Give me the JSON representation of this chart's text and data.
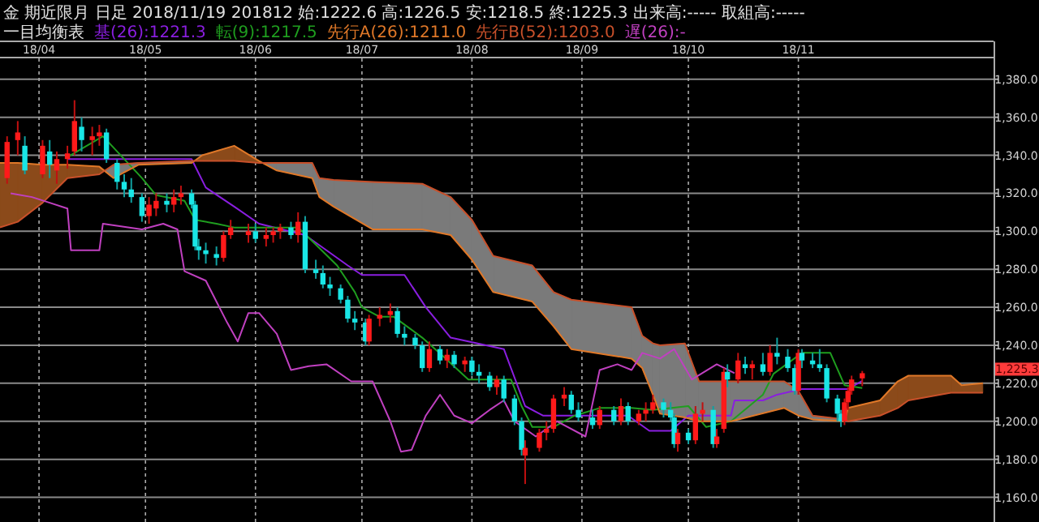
{
  "chart_data": {
    "type": "candlestick",
    "title": "金 期近限月 日足 2018/11/19 201812 始:1222.6 高:1226.5 安:1218.5 終:1225.3 出来高:----- 取組高:-----",
    "legend_title": "一目均衡表",
    "x": [
      "2018-03-23",
      "2018-03-26",
      "2018-03-28",
      "2018-04-02",
      "2018-04-04",
      "2018-04-06",
      "2018-04-09",
      "2018-04-11",
      "2018-04-13",
      "2018-04-16",
      "2018-04-18",
      "2018-04-20",
      "2018-04-23",
      "2018-04-25",
      "2018-04-27",
      "2018-04-30",
      "2018-05-02",
      "2018-05-04",
      "2018-05-07",
      "2018-05-09",
      "2018-05-11",
      "2018-05-14",
      "2018-05-15",
      "2018-05-16",
      "2018-05-18",
      "2018-05-21",
      "2018-05-23",
      "2018-05-25",
      "2018-05-30",
      "2018-06-01",
      "2018-06-04",
      "2018-06-06",
      "2018-06-08",
      "2018-06-11",
      "2018-06-13",
      "2018-06-15",
      "2018-06-18",
      "2018-06-20",
      "2018-06-22",
      "2018-06-25",
      "2018-06-27",
      "2018-06-29",
      "2018-07-02",
      "2018-07-03",
      "2018-07-06",
      "2018-07-09",
      "2018-07-11",
      "2018-07-13",
      "2018-07-16",
      "2018-07-18",
      "2018-07-20",
      "2018-07-23",
      "2018-07-25",
      "2018-07-27",
      "2018-07-30",
      "2018-08-01",
      "2018-08-03",
      "2018-08-06",
      "2018-08-08",
      "2018-08-10",
      "2018-08-13",
      "2018-08-15",
      "2018-08-16",
      "2018-08-20",
      "2018-08-22",
      "2018-08-24",
      "2018-08-27",
      "2018-08-29",
      "2018-08-31",
      "2018-09-04",
      "2018-09-06",
      "2018-09-10",
      "2018-09-12",
      "2018-09-14",
      "2018-09-17",
      "2018-09-19",
      "2018-09-21",
      "2018-09-24",
      "2018-09-26",
      "2018-09-27",
      "2018-09-28",
      "2018-10-01",
      "2018-10-03",
      "2018-10-05",
      "2018-10-08",
      "2018-10-09",
      "2018-10-11",
      "2018-10-12",
      "2018-10-15",
      "2018-10-17",
      "2018-10-19",
      "2018-10-22",
      "2018-10-24",
      "2018-10-26",
      "2018-10-29",
      "2018-10-31",
      "2018-11-01",
      "2018-11-02",
      "2018-11-05",
      "2018-11-07",
      "2018-11-09",
      "2018-11-12",
      "2018-11-13",
      "2018-11-14",
      "2018-11-15",
      "2018-11-16",
      "2018-11-19"
    ],
    "ohlc": [
      [
        1328,
        1350,
        1325,
        1347
      ],
      [
        1348,
        1358,
        1340,
        1352
      ],
      [
        1345,
        1350,
        1330,
        1332
      ],
      [
        1330,
        1348,
        1328,
        1345
      ],
      [
        1342,
        1348,
        1328,
        1335
      ],
      [
        1332,
        1342,
        1325,
        1338
      ],
      [
        1338,
        1345,
        1333,
        1341
      ],
      [
        1342,
        1369,
        1340,
        1358
      ],
      [
        1355,
        1360,
        1342,
        1348
      ],
      [
        1348,
        1355,
        1340,
        1350
      ],
      [
        1350,
        1356,
        1345,
        1352
      ],
      [
        1352,
        1354,
        1336,
        1338
      ],
      [
        1336,
        1338,
        1322,
        1326
      ],
      [
        1326,
        1330,
        1318,
        1322
      ],
      [
        1322,
        1328,
        1315,
        1318
      ],
      [
        1318,
        1320,
        1305,
        1308
      ],
      [
        1308,
        1318,
        1304,
        1314
      ],
      [
        1312,
        1320,
        1308,
        1316
      ],
      [
        1316,
        1320,
        1310,
        1314
      ],
      [
        1314,
        1322,
        1310,
        1318
      ],
      [
        1318,
        1324,
        1314,
        1320
      ],
      [
        1320,
        1322,
        1312,
        1314
      ],
      [
        1314,
        1316,
        1290,
        1292
      ],
      [
        1292,
        1296,
        1285,
        1290
      ],
      [
        1290,
        1294,
        1283,
        1288
      ],
      [
        1288,
        1292,
        1282,
        1286
      ],
      [
        1286,
        1300,
        1284,
        1298
      ],
      [
        1298,
        1306,
        1296,
        1302
      ],
      [
        1298,
        1304,
        1294,
        1300
      ],
      [
        1300,
        1304,
        1294,
        1296
      ],
      [
        1296,
        1302,
        1292,
        1298
      ],
      [
        1298,
        1302,
        1294,
        1300
      ],
      [
        1300,
        1304,
        1296,
        1302
      ],
      [
        1302,
        1305,
        1296,
        1298
      ],
      [
        1298,
        1310,
        1294,
        1305
      ],
      [
        1305,
        1308,
        1278,
        1280
      ],
      [
        1280,
        1285,
        1275,
        1278
      ],
      [
        1278,
        1282,
        1270,
        1272
      ],
      [
        1272,
        1276,
        1266,
        1270
      ],
      [
        1270,
        1272,
        1262,
        1264
      ],
      [
        1264,
        1266,
        1252,
        1254
      ],
      [
        1254,
        1258,
        1248,
        1252
      ],
      [
        1252,
        1254,
        1240,
        1242
      ],
      [
        1242,
        1256,
        1240,
        1254
      ],
      [
        1254,
        1260,
        1250,
        1256
      ],
      [
        1256,
        1262,
        1252,
        1258
      ],
      [
        1258,
        1260,
        1244,
        1246
      ],
      [
        1246,
        1250,
        1240,
        1244
      ],
      [
        1244,
        1246,
        1238,
        1240
      ],
      [
        1240,
        1242,
        1226,
        1228
      ],
      [
        1228,
        1242,
        1226,
        1238
      ],
      [
        1238,
        1240,
        1230,
        1232
      ],
      [
        1232,
        1238,
        1228,
        1235
      ],
      [
        1235,
        1237,
        1228,
        1230
      ],
      [
        1230,
        1234,
        1226,
        1232
      ],
      [
        1232,
        1234,
        1224,
        1226
      ],
      [
        1226,
        1230,
        1220,
        1224
      ],
      [
        1224,
        1226,
        1216,
        1218
      ],
      [
        1218,
        1224,
        1214,
        1222
      ],
      [
        1222,
        1224,
        1210,
        1212
      ],
      [
        1212,
        1214,
        1198,
        1200
      ],
      [
        1200,
        1202,
        1182,
        1185
      ],
      [
        1182,
        1190,
        1167,
        1186
      ],
      [
        1186,
        1196,
        1184,
        1194
      ],
      [
        1194,
        1200,
        1190,
        1196
      ],
      [
        1196,
        1214,
        1194,
        1212
      ],
      [
        1212,
        1218,
        1208,
        1214
      ],
      [
        1214,
        1216,
        1204,
        1206
      ],
      [
        1206,
        1210,
        1200,
        1202
      ],
      [
        1202,
        1206,
        1196,
        1198
      ],
      [
        1198,
        1208,
        1196,
        1206
      ],
      [
        1206,
        1208,
        1198,
        1200
      ],
      [
        1200,
        1212,
        1198,
        1208
      ],
      [
        1208,
        1210,
        1198,
        1200
      ],
      [
        1200,
        1206,
        1198,
        1204
      ],
      [
        1204,
        1210,
        1200,
        1206
      ],
      [
        1206,
        1214,
        1204,
        1210
      ],
      [
        1210,
        1212,
        1202,
        1206
      ],
      [
        1206,
        1210,
        1200,
        1202
      ],
      [
        1202,
        1204,
        1186,
        1188
      ],
      [
        1188,
        1196,
        1184,
        1194
      ],
      [
        1194,
        1196,
        1188,
        1190
      ],
      [
        1190,
        1208,
        1188,
        1204
      ],
      [
        1204,
        1210,
        1200,
        1206
      ],
      [
        1206,
        1208,
        1186,
        1188
      ],
      [
        1188,
        1196,
        1186,
        1192
      ],
      [
        1196,
        1228,
        1194,
        1226
      ],
      [
        1226,
        1230,
        1218,
        1222
      ],
      [
        1222,
        1236,
        1220,
        1232
      ],
      [
        1230,
        1234,
        1225,
        1228
      ],
      [
        1228,
        1232,
        1222,
        1230
      ],
      [
        1230,
        1236,
        1224,
        1226
      ],
      [
        1226,
        1240,
        1224,
        1236
      ],
      [
        1236,
        1244,
        1230,
        1234
      ],
      [
        1234,
        1238,
        1226,
        1228
      ],
      [
        1228,
        1230,
        1214,
        1216
      ],
      [
        1216,
        1238,
        1214,
        1236
      ],
      [
        1236,
        1238,
        1228,
        1232
      ],
      [
        1232,
        1236,
        1228,
        1230
      ],
      [
        1230,
        1238,
        1226,
        1228
      ],
      [
        1228,
        1230,
        1210,
        1212
      ],
      [
        1212,
        1214,
        1200,
        1204
      ],
      [
        1204,
        1206,
        1197,
        1200
      ],
      [
        1200,
        1212,
        1198,
        1210
      ],
      [
        1210,
        1218,
        1206,
        1216
      ],
      [
        1216,
        1224,
        1214,
        1222
      ],
      [
        1222.6,
        1226.5,
        1218.5,
        1225.3
      ]
    ],
    "series": [
      {
        "name": "基(26):1221.3",
        "type": "line",
        "color": "#8a1ee0",
        "x": [
          "2018-04-09",
          "2018-05-14",
          "2018-05-18",
          "2018-05-26",
          "2018-06-02",
          "2018-06-15",
          "2018-06-27",
          "2018-07-01",
          "2018-07-13",
          "2018-07-19",
          "2018-07-26",
          "2018-08-10",
          "2018-08-16",
          "2018-08-21",
          "2018-09-14",
          "2018-09-20",
          "2018-09-26",
          "2018-10-01",
          "2018-10-13",
          "2018-10-14",
          "2018-10-22",
          "2018-10-26",
          "2018-11-02",
          "2018-11-15",
          "2018-11-19"
        ],
        "values": [
          1338,
          1338,
          1323,
          1313,
          1304,
          1298,
          1282,
          1277,
          1277,
          1260,
          1244,
          1238,
          1208,
          1203,
          1203,
          1195,
          1195,
          1203,
          1203,
          1211,
          1211,
          1214,
          1217,
          1217,
          1221.3
        ]
      },
      {
        "name": "転(9):1217.5",
        "type": "line",
        "color": "#1f9e1f",
        "x": [
          "2018-04-09",
          "2018-04-19",
          "2018-04-30",
          "2018-05-04",
          "2018-05-12",
          "2018-05-15",
          "2018-05-21",
          "2018-05-26",
          "2018-06-13",
          "2018-06-18",
          "2018-06-24",
          "2018-06-29",
          "2018-07-01",
          "2018-07-06",
          "2018-07-10",
          "2018-07-18",
          "2018-07-24",
          "2018-07-31",
          "2018-08-12",
          "2018-08-15",
          "2018-08-18",
          "2018-08-24",
          "2018-08-30",
          "2018-09-06",
          "2018-09-15",
          "2018-09-21",
          "2018-10-01",
          "2018-10-06",
          "2018-10-13",
          "2018-10-22",
          "2018-10-25",
          "2018-11-02",
          "2018-11-10",
          "2018-11-14",
          "2018-11-19"
        ],
        "values": [
          1339,
          1350,
          1328,
          1319,
          1316,
          1306,
          1304,
          1302,
          1302,
          1293,
          1282,
          1268,
          1260,
          1255,
          1255,
          1244,
          1234,
          1222,
          1222,
          1208,
          1197,
          1197,
          1203,
          1207,
          1207,
          1206,
          1208,
          1197,
          1200,
          1214,
          1225,
          1236,
          1236,
          1219,
          1217.5
        ]
      },
      {
        "name": "先行A(26):1211.0",
        "type": "line",
        "color": "#e07828",
        "x": [
          "2018-03-21",
          "2018-03-26",
          "2018-04-02",
          "2018-04-09",
          "2018-04-18",
          "2018-04-22",
          "2018-04-29",
          "2018-05-14",
          "2018-05-17",
          "2018-05-26",
          "2018-06-02",
          "2018-06-07",
          "2018-06-17",
          "2018-06-19",
          "2018-06-23",
          "2018-07-04",
          "2018-07-18",
          "2018-07-26",
          "2018-08-01",
          "2018-08-07",
          "2018-08-18",
          "2018-08-24",
          "2018-08-29",
          "2018-09-15",
          "2018-09-18",
          "2018-09-21",
          "2018-09-23",
          "2018-09-30",
          "2018-10-04",
          "2018-10-13",
          "2018-10-28",
          "2018-11-01",
          "2018-11-05",
          "2018-11-14",
          "2018-11-15",
          "2018-11-24",
          "2018-11-29",
          "2018-12-02",
          "2018-12-14",
          "2018-12-17",
          "2018-12-23"
        ],
        "values": [
          1336,
          1336,
          1335,
          1335,
          1334,
          1328,
          1335,
          1336,
          1340,
          1345,
          1337,
          1332,
          1328,
          1318,
          1313,
          1301,
          1301,
          1298,
          1285,
          1268,
          1263,
          1250,
          1238,
          1233,
          1228,
          1214,
          1204,
          1202,
          1200,
          1200,
          1207,
          1203,
          1201,
          1200,
          1207,
          1211,
          1221,
          1224,
          1224,
          1219,
          1220
        ]
      },
      {
        "name": "先行B(52):1203.0",
        "type": "line",
        "color": "#c8502a",
        "x": [
          "2018-03-21",
          "2018-03-26",
          "2018-04-02",
          "2018-04-09",
          "2018-04-18",
          "2018-04-22",
          "2018-04-29",
          "2018-05-14",
          "2018-05-17",
          "2018-05-26",
          "2018-06-02",
          "2018-06-07",
          "2018-06-17",
          "2018-06-19",
          "2018-06-23",
          "2018-07-04",
          "2018-07-18",
          "2018-07-26",
          "2018-08-01",
          "2018-08-07",
          "2018-08-18",
          "2018-08-24",
          "2018-08-29",
          "2018-09-15",
          "2018-09-18",
          "2018-09-21",
          "2018-09-23",
          "2018-09-30",
          "2018-10-04",
          "2018-10-13",
          "2018-10-28",
          "2018-11-01",
          "2018-11-05",
          "2018-11-14",
          "2018-11-15",
          "2018-11-24",
          "2018-11-29",
          "2018-12-02",
          "2018-12-14",
          "2018-12-17",
          "2018-12-23"
        ],
        "values": [
          1302,
          1305,
          1315,
          1328,
          1330,
          1335,
          1336,
          1337,
          1337,
          1337,
          1336,
          1336,
          1336,
          1328,
          1327,
          1326,
          1325,
          1318,
          1306,
          1287,
          1282,
          1268,
          1264,
          1260,
          1245,
          1241,
          1240,
          1241,
          1221,
          1221,
          1221,
          1216,
          1203,
          1201,
          1200,
          1203,
          1207,
          1211,
          1215,
          1215,
          1215
        ]
      },
      {
        "name": "遅(26):-",
        "type": "line",
        "color": "#c040c0",
        "x": [
          "2018-03-24",
          "2018-03-30",
          "2018-04-04",
          "2018-04-09",
          "2018-04-10",
          "2018-04-18",
          "2018-04-19",
          "2018-04-30",
          "2018-05-06",
          "2018-05-10",
          "2018-05-12",
          "2018-05-18",
          "2018-05-24",
          "2018-05-27",
          "2018-05-30",
          "2018-06-02",
          "2018-06-07",
          "2018-06-11",
          "2018-06-16",
          "2018-06-21",
          "2018-06-28",
          "2018-07-04",
          "2018-07-09",
          "2018-07-12",
          "2018-07-15",
          "2018-07-19",
          "2018-07-23",
          "2018-07-27",
          "2018-08-01",
          "2018-08-06",
          "2018-08-10",
          "2018-08-13",
          "2018-08-19",
          "2018-08-25",
          "2018-09-02",
          "2018-09-06",
          "2018-09-11",
          "2018-09-15",
          "2018-09-18",
          "2018-09-23",
          "2018-09-27",
          "2018-10-02",
          "2018-10-09",
          "2018-10-14"
        ],
        "values": [
          1320,
          1318,
          1315,
          1312,
          1290,
          1290,
          1304,
          1301,
          1304,
          1301,
          1279,
          1274,
          1252,
          1242,
          1257,
          1257,
          1246,
          1227,
          1229,
          1230,
          1221,
          1221,
          1200,
          1184,
          1185,
          1203,
          1214,
          1203,
          1199,
          1206,
          1211,
          1200,
          1192,
          1200,
          1192,
          1227,
          1230,
          1227,
          1236,
          1233,
          1238,
          1222,
          1230,
          1225.3
        ]
      }
    ],
    "annotations": [
      "1,225.3"
    ],
    "xlim": [
      "2018-03-21",
      "2018-12-26"
    ],
    "xticks": [
      {
        "value": "2018-04-01",
        "label": "18/04"
      },
      {
        "value": "2018-05-01",
        "label": "18/05"
      },
      {
        "value": "2018-06-01",
        "label": "18/06"
      },
      {
        "value": "2018-07-01",
        "label": "18/07"
      },
      {
        "value": "2018-08-01",
        "label": "18/08"
      },
      {
        "value": "2018-09-01",
        "label": "18/09"
      },
      {
        "value": "2018-10-01",
        "label": "18/10"
      },
      {
        "value": "2018-11-01",
        "label": "18/11"
      }
    ],
    "ylim": [
      1147,
      1391
    ],
    "yticks": [
      {
        "value": 1160,
        "label": "1,160.0"
      },
      {
        "value": 1180,
        "label": "1,180.0"
      },
      {
        "value": 1200,
        "label": "1,200.0"
      },
      {
        "value": 1220,
        "label": "1,220.0"
      },
      {
        "value": 1240,
        "label": "1,240.0"
      },
      {
        "value": 1260,
        "label": "1,260.0"
      },
      {
        "value": 1280,
        "label": "1,280.0"
      },
      {
        "value": 1300,
        "label": "1,300.0"
      },
      {
        "value": 1320,
        "label": "1,320.0"
      },
      {
        "value": 1340,
        "label": "1,340.0"
      },
      {
        "value": 1360,
        "label": "1,360.0"
      },
      {
        "value": 1380,
        "label": "1,380.0"
      }
    ],
    "grid": true,
    "legend": "top left"
  }
}
